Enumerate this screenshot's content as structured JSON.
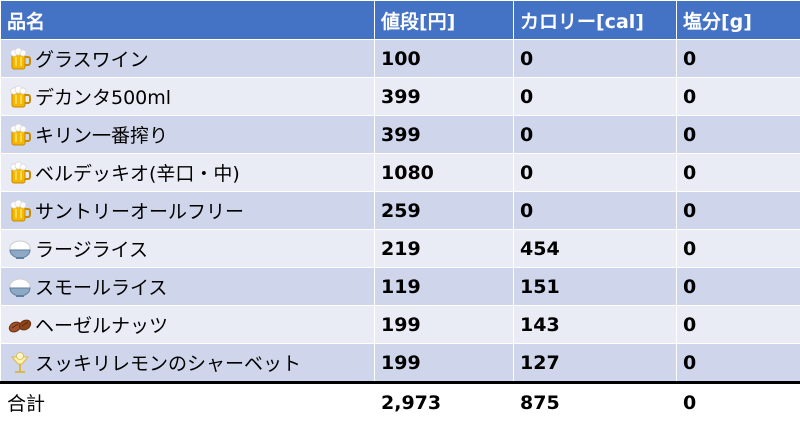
{
  "headers": {
    "name": "品名",
    "price": "値段[円]",
    "calories": "カロリー[cal]",
    "salt": "塩分[g]"
  },
  "rows": [
    {
      "icon": "beer-mug-icon",
      "name": "グラスワイン",
      "price": "100",
      "calories": "0",
      "salt": "0"
    },
    {
      "icon": "beer-mug-icon",
      "name": "デカンタ500ml",
      "price": "399",
      "calories": "0",
      "salt": "0"
    },
    {
      "icon": "beer-mug-icon",
      "name": "キリン一番搾り",
      "price": "399",
      "calories": "0",
      "salt": "0"
    },
    {
      "icon": "beer-mug-icon",
      "name": "ベルデッキオ(辛口・中)",
      "price": "1080",
      "calories": "0",
      "salt": "0"
    },
    {
      "icon": "beer-mug-icon",
      "name": "サントリーオールフリー",
      "price": "259",
      "calories": "0",
      "salt": "0"
    },
    {
      "icon": "rice-bowl-icon",
      "name": "ラージライス",
      "price": "219",
      "calories": "454",
      "salt": "0"
    },
    {
      "icon": "rice-bowl-icon",
      "name": "スモールライス",
      "price": "119",
      "calories": "151",
      "salt": "0"
    },
    {
      "icon": "hazelnut-icon",
      "name": "ヘーゼルナッツ",
      "price": "199",
      "calories": "143",
      "salt": "0"
    },
    {
      "icon": "sherbet-glass-icon",
      "name": "スッキリレモンのシャーベット",
      "price": "199",
      "calories": "127",
      "salt": "0"
    }
  ],
  "total": {
    "label": "合計",
    "price": "2,973",
    "calories": "875",
    "salt": "0"
  }
}
